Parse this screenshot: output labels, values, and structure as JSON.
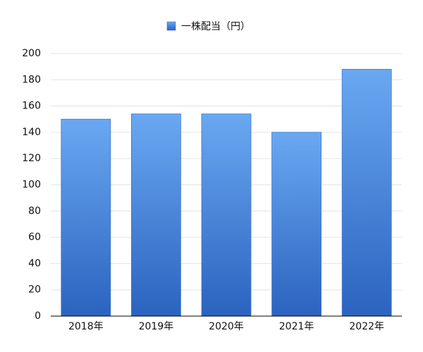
{
  "chart_data": {
    "type": "bar",
    "categories": [
      "2018年",
      "2019年",
      "2020年",
      "2021年",
      "2022年"
    ],
    "series": [
      {
        "name": "一株配当（円）",
        "color": "#6aa8f2",
        "values": [
          150,
          154,
          154,
          140,
          188
        ]
      }
    ],
    "ylim": [
      0,
      200
    ],
    "yticks": [
      0,
      20,
      40,
      60,
      80,
      100,
      120,
      140,
      160,
      180,
      200
    ],
    "grid": true,
    "legend": "top"
  }
}
